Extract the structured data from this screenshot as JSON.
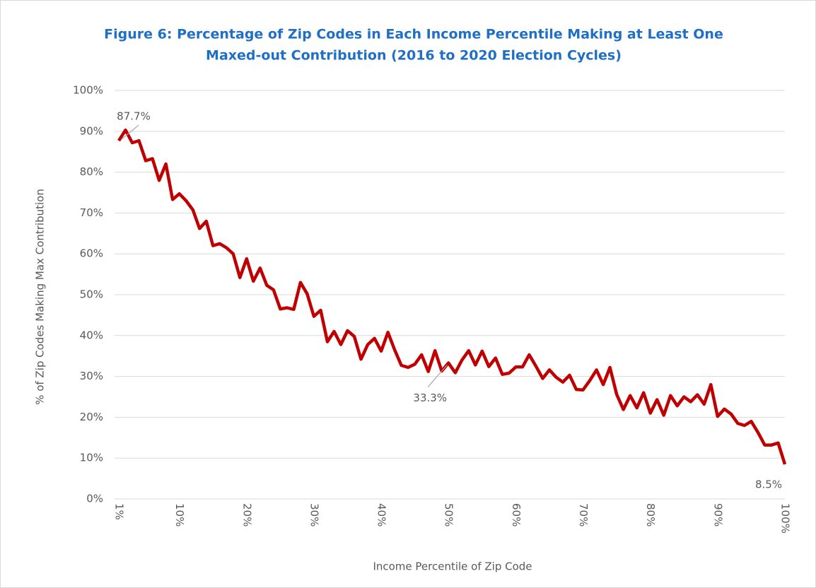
{
  "chart_data": {
    "type": "line",
    "title_lines": [
      "Figure 6: Percentage of Zip Codes in Each Income Percentile Making at Least One",
      "Maxed-out Contribution (2016 to 2020 Election Cycles)"
    ],
    "x_label": "Income Percentile of Zip Code",
    "y_label": "% of Zip Codes Making Max Contribution",
    "categories": [
      "1%",
      null,
      null,
      null,
      null,
      null,
      null,
      null,
      null,
      "10%",
      null,
      null,
      null,
      null,
      null,
      null,
      null,
      null,
      null,
      "20%",
      null,
      null,
      null,
      null,
      null,
      null,
      null,
      null,
      null,
      "30%",
      null,
      null,
      null,
      null,
      null,
      null,
      null,
      null,
      null,
      "40%",
      null,
      null,
      null,
      null,
      null,
      null,
      null,
      null,
      null,
      "50%",
      null,
      null,
      null,
      null,
      null,
      null,
      null,
      null,
      null,
      "60%",
      null,
      null,
      null,
      null,
      null,
      null,
      null,
      null,
      null,
      "70%",
      null,
      null,
      null,
      null,
      null,
      null,
      null,
      null,
      null,
      "80%",
      null,
      null,
      null,
      null,
      null,
      null,
      null,
      null,
      null,
      "90%",
      null,
      null,
      null,
      null,
      null,
      null,
      null,
      null,
      null,
      "100%"
    ],
    "series": [
      {
        "name": null,
        "color": "#c00000",
        "values": [
          87.7,
          90.3,
          87.2,
          87.7,
          82.8,
          83.3,
          78.0,
          82.0,
          73.3,
          74.7,
          73.0,
          70.8,
          66.2,
          68.0,
          62.0,
          62.5,
          61.5,
          60.0,
          54.2,
          58.8,
          53.3,
          56.5,
          52.3,
          51.2,
          46.5,
          46.8,
          46.4,
          53.0,
          50.2,
          44.7,
          46.2,
          38.5,
          41.0,
          37.8,
          41.2,
          39.8,
          34.2,
          37.8,
          39.3,
          36.2,
          40.8,
          36.5,
          32.7,
          32.2,
          33.0,
          35.3,
          31.2,
          36.3,
          31.3,
          33.3,
          30.9,
          34.0,
          36.3,
          32.8,
          36.2,
          32.4,
          34.5,
          30.5,
          30.8,
          32.3,
          32.3,
          35.3,
          32.5,
          29.5,
          31.6,
          29.8,
          28.6,
          30.3,
          26.8,
          26.7,
          29.0,
          31.6,
          28.0,
          32.2,
          25.6,
          21.9,
          25.3,
          22.3,
          26.0,
          21.0,
          24.3,
          20.5,
          25.3,
          22.8,
          25.0,
          23.8,
          25.5,
          23.2,
          28.0,
          20.2,
          22.0,
          20.8,
          18.5,
          18.0,
          19.0,
          16.3,
          13.2,
          13.2,
          13.7,
          8.5
        ],
        "value_labels": [
          "87.7%",
          null,
          null,
          null,
          null,
          null,
          null,
          null,
          null,
          null,
          null,
          null,
          null,
          null,
          null,
          null,
          null,
          null,
          null,
          null,
          null,
          null,
          null,
          null,
          null,
          null,
          null,
          null,
          null,
          null,
          null,
          null,
          null,
          null,
          null,
          null,
          null,
          null,
          null,
          null,
          null,
          null,
          null,
          null,
          null,
          null,
          null,
          null,
          null,
          "33.3%",
          null,
          null,
          null,
          null,
          null,
          null,
          null,
          null,
          null,
          null,
          null,
          null,
          null,
          null,
          null,
          null,
          null,
          null,
          null,
          null,
          null,
          null,
          null,
          null,
          null,
          null,
          null,
          null,
          null,
          null,
          null,
          null,
          null,
          null,
          null,
          null,
          null,
          null,
          null,
          null,
          null,
          null,
          null,
          null,
          null,
          null,
          null,
          null,
          null,
          "8.5%"
        ]
      }
    ],
    "ylim": [
      0,
      100
    ],
    "yticks": [
      {
        "value": 0,
        "label": "0%"
      },
      {
        "value": 10,
        "label": "10%"
      },
      {
        "value": 20,
        "label": "20%"
      },
      {
        "value": 30,
        "label": "30%"
      },
      {
        "value": 40,
        "label": "40%"
      },
      {
        "value": 50,
        "label": "50%"
      },
      {
        "value": 60,
        "label": "60%"
      },
      {
        "value": 70,
        "label": "70%"
      },
      {
        "value": 80,
        "label": "80%"
      },
      {
        "value": 90,
        "label": "90%"
      },
      {
        "value": 100,
        "label": "100%"
      }
    ],
    "grid": true
  }
}
